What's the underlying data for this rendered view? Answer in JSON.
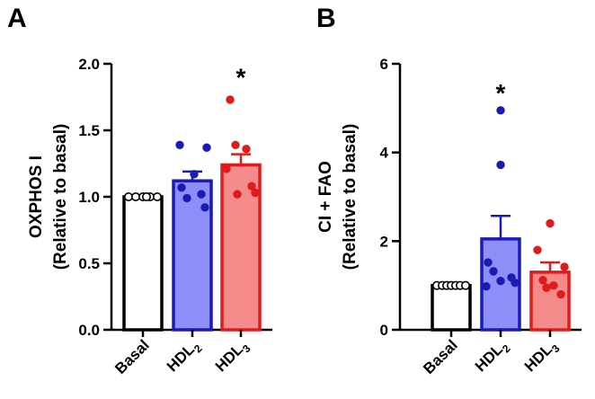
{
  "chart_data": [
    {
      "panel": "A",
      "type": "bar",
      "ylabel_line1": "OXPHOS I",
      "ylabel_line2": "(Relative to basal)",
      "ylim": [
        0,
        2.0
      ],
      "yticks": [
        "0.0",
        "0.5",
        "1.0",
        "1.5",
        "2.0"
      ],
      "categories": [
        {
          "base": "Basal",
          "sub": ""
        },
        {
          "base": "HDL",
          "sub": "2"
        },
        {
          "base": "HDL",
          "sub": "3"
        }
      ],
      "values": [
        1.0,
        1.12,
        1.24
      ],
      "sem": [
        0.0,
        0.07,
        0.08
      ],
      "fills": [
        "#ffffff",
        "#8d8ef7",
        "#f58a8a"
      ],
      "edges": [
        "#000000",
        "#1a1ab4",
        "#e01b1b"
      ],
      "points": [
        [
          1.0,
          1.0,
          1.0,
          1.0,
          1.0,
          1.0
        ],
        [
          1.39,
          1.37,
          1.17,
          1.07,
          1.02,
          0.99,
          0.92
        ],
        [
          1.73,
          1.39,
          1.36,
          1.21,
          1.08,
          1.03,
          1.02
        ]
      ],
      "annotations": [
        {
          "category_index": 2,
          "text": "*",
          "y": 1.97
        }
      ]
    },
    {
      "panel": "B",
      "type": "bar",
      "ylabel_line1": "CI + FAO",
      "ylabel_line2": "(Relative to basal)",
      "ylim": [
        0,
        6
      ],
      "yticks": [
        "0",
        "2",
        "4",
        "6"
      ],
      "categories": [
        {
          "base": "Basal",
          "sub": ""
        },
        {
          "base": "HDL",
          "sub": "2"
        },
        {
          "base": "HDL",
          "sub": "3"
        }
      ],
      "values": [
        1.0,
        2.05,
        1.3
      ],
      "sem": [
        0.0,
        0.52,
        0.22
      ],
      "fills": [
        "#ffffff",
        "#8d8ef7",
        "#f58a8a"
      ],
      "edges": [
        "#000000",
        "#1a1ab4",
        "#e01b1b"
      ],
      "points": [
        [
          1.0,
          1.0,
          1.0,
          1.0,
          1.0,
          1.0,
          1.0
        ],
        [
          4.95,
          3.72,
          1.52,
          1.32,
          1.18,
          1.1,
          1.06,
          0.98
        ],
        [
          2.4,
          1.8,
          1.42,
          1.12,
          1.0,
          0.95,
          0.8
        ]
      ],
      "annotations": [
        {
          "category_index": 1,
          "text": "*",
          "y": 5.55
        }
      ]
    }
  ]
}
